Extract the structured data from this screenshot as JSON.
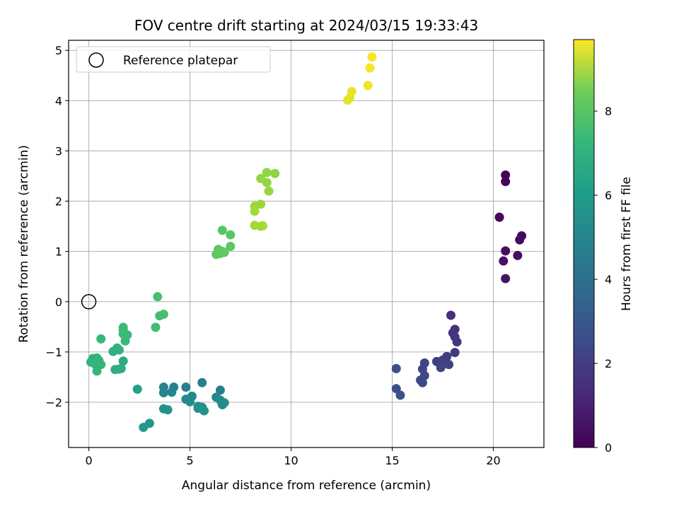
{
  "chart_data": {
    "type": "scatter",
    "title": "FOV centre drift starting at 2024/03/15 19:33:43",
    "xlabel": "Angular distance from reference (arcmin)",
    "ylabel": "Rotation from reference (arcmin)",
    "xlim": [
      -1.0,
      22.5
    ],
    "ylim": [
      -2.9,
      5.2
    ],
    "xticks": [
      0,
      5,
      10,
      15,
      20
    ],
    "yticks": [
      -2,
      -1,
      0,
      1,
      2,
      3,
      4,
      5
    ],
    "grid": true,
    "legend": {
      "placement": "top-left",
      "entries": [
        "Reference platepar"
      ]
    },
    "reference_point": {
      "x": 0,
      "y": 0,
      "label": "Reference platepar"
    },
    "colorbar": {
      "label": "Hours from first FF file",
      "range": [
        0,
        9.7
      ],
      "ticks": [
        0,
        2,
        4,
        6,
        8
      ],
      "colormap": "viridis"
    },
    "points": [
      {
        "x": 20.6,
        "y": 2.52,
        "c": 0.1
      },
      {
        "x": 20.6,
        "y": 2.39,
        "c": 0.15
      },
      {
        "x": 20.3,
        "y": 1.68,
        "c": 0.2
      },
      {
        "x": 21.4,
        "y": 1.31,
        "c": 0.25
      },
      {
        "x": 21.3,
        "y": 1.23,
        "c": 0.3
      },
      {
        "x": 20.6,
        "y": 1.01,
        "c": 0.35
      },
      {
        "x": 21.2,
        "y": 0.92,
        "c": 0.4
      },
      {
        "x": 20.5,
        "y": 0.81,
        "c": 0.45
      },
      {
        "x": 20.6,
        "y": 0.46,
        "c": 0.5
      },
      {
        "x": 17.9,
        "y": -0.27,
        "c": 1.3
      },
      {
        "x": 18.1,
        "y": -0.55,
        "c": 1.4
      },
      {
        "x": 18.0,
        "y": -0.62,
        "c": 1.45
      },
      {
        "x": 18.1,
        "y": -0.7,
        "c": 1.5
      },
      {
        "x": 18.2,
        "y": -0.8,
        "c": 1.55
      },
      {
        "x": 18.1,
        "y": -1.01,
        "c": 1.6
      },
      {
        "x": 17.7,
        "y": -1.09,
        "c": 1.7
      },
      {
        "x": 17.5,
        "y": -1.16,
        "c": 1.75
      },
      {
        "x": 17.2,
        "y": -1.19,
        "c": 1.8
      },
      {
        "x": 17.4,
        "y": -1.23,
        "c": 1.85
      },
      {
        "x": 17.8,
        "y": -1.25,
        "c": 1.9
      },
      {
        "x": 17.4,
        "y": -1.31,
        "c": 1.95
      },
      {
        "x": 16.6,
        "y": -1.22,
        "c": 2.0
      },
      {
        "x": 16.5,
        "y": -1.34,
        "c": 2.05
      },
      {
        "x": 16.6,
        "y": -1.47,
        "c": 2.1
      },
      {
        "x": 16.4,
        "y": -1.56,
        "c": 2.15
      },
      {
        "x": 16.5,
        "y": -1.61,
        "c": 2.2
      },
      {
        "x": 15.2,
        "y": -1.33,
        "c": 2.3
      },
      {
        "x": 15.2,
        "y": -1.73,
        "c": 2.35
      },
      {
        "x": 15.4,
        "y": -1.86,
        "c": 2.4
      },
      {
        "x": 5.6,
        "y": -1.61,
        "c": 4.1
      },
      {
        "x": 4.8,
        "y": -1.7,
        "c": 4.15
      },
      {
        "x": 6.5,
        "y": -1.76,
        "c": 4.2
      },
      {
        "x": 3.7,
        "y": -1.7,
        "c": 4.25
      },
      {
        "x": 4.2,
        "y": -1.7,
        "c": 4.3
      },
      {
        "x": 3.7,
        "y": -1.81,
        "c": 4.35
      },
      {
        "x": 4.1,
        "y": -1.8,
        "c": 4.4
      },
      {
        "x": 5.1,
        "y": -1.88,
        "c": 4.45
      },
      {
        "x": 6.3,
        "y": -1.9,
        "c": 4.5
      },
      {
        "x": 4.8,
        "y": -1.94,
        "c": 4.55
      },
      {
        "x": 6.5,
        "y": -1.96,
        "c": 4.6
      },
      {
        "x": 5.0,
        "y": -1.99,
        "c": 4.65
      },
      {
        "x": 6.7,
        "y": -2.01,
        "c": 4.7
      },
      {
        "x": 6.6,
        "y": -2.05,
        "c": 4.75
      },
      {
        "x": 5.4,
        "y": -2.08,
        "c": 4.8
      },
      {
        "x": 5.6,
        "y": -2.1,
        "c": 4.85
      },
      {
        "x": 5.4,
        "y": -2.12,
        "c": 4.9
      },
      {
        "x": 3.7,
        "y": -2.13,
        "c": 4.95
      },
      {
        "x": 3.9,
        "y": -2.15,
        "c": 5.0
      },
      {
        "x": 5.7,
        "y": -2.17,
        "c": 5.05
      },
      {
        "x": 3.0,
        "y": -2.42,
        "c": 5.2
      },
      {
        "x": 2.7,
        "y": -2.5,
        "c": 5.25
      },
      {
        "x": 2.4,
        "y": -1.74,
        "c": 5.5
      },
      {
        "x": 1.7,
        "y": -1.18,
        "c": 6.0
      },
      {
        "x": 1.5,
        "y": -1.34,
        "c": 6.05
      },
      {
        "x": 1.3,
        "y": -1.35,
        "c": 6.1
      },
      {
        "x": 1.6,
        "y": -1.33,
        "c": 6.1
      },
      {
        "x": 1.2,
        "y": -0.99,
        "c": 6.15
      },
      {
        "x": 1.4,
        "y": -0.92,
        "c": 6.2
      },
      {
        "x": 1.5,
        "y": -0.96,
        "c": 6.2
      },
      {
        "x": 0.2,
        "y": -1.13,
        "c": 6.25
      },
      {
        "x": 0.4,
        "y": -1.12,
        "c": 6.3
      },
      {
        "x": 0.1,
        "y": -1.2,
        "c": 6.3
      },
      {
        "x": 0.5,
        "y": -1.17,
        "c": 6.35
      },
      {
        "x": 0.3,
        "y": -1.24,
        "c": 6.35
      },
      {
        "x": 0.6,
        "y": -1.25,
        "c": 6.4
      },
      {
        "x": 0.4,
        "y": -1.38,
        "c": 6.4
      },
      {
        "x": 0.6,
        "y": -0.74,
        "c": 6.45
      },
      {
        "x": 1.8,
        "y": -0.78,
        "c": 6.5
      },
      {
        "x": 1.7,
        "y": -0.64,
        "c": 6.55
      },
      {
        "x": 1.9,
        "y": -0.66,
        "c": 6.55
      },
      {
        "x": 1.7,
        "y": -0.56,
        "c": 6.6
      },
      {
        "x": 1.7,
        "y": -0.51,
        "c": 6.6
      },
      {
        "x": 3.3,
        "y": -0.51,
        "c": 6.7
      },
      {
        "x": 3.5,
        "y": -0.28,
        "c": 6.75
      },
      {
        "x": 3.7,
        "y": -0.25,
        "c": 6.8
      },
      {
        "x": 3.4,
        "y": 0.1,
        "c": 6.85
      },
      {
        "x": 6.6,
        "y": 1.42,
        "c": 7.1
      },
      {
        "x": 7.0,
        "y": 1.33,
        "c": 7.15
      },
      {
        "x": 7.0,
        "y": 1.1,
        "c": 7.2
      },
      {
        "x": 6.4,
        "y": 1.04,
        "c": 7.2
      },
      {
        "x": 6.6,
        "y": 1.0,
        "c": 7.25
      },
      {
        "x": 6.3,
        "y": 0.94,
        "c": 7.25
      },
      {
        "x": 6.5,
        "y": 0.96,
        "c": 7.3
      },
      {
        "x": 6.7,
        "y": 0.98,
        "c": 7.3
      },
      {
        "x": 9.2,
        "y": 2.55,
        "c": 8.0
      },
      {
        "x": 8.8,
        "y": 2.57,
        "c": 8.05
      },
      {
        "x": 8.5,
        "y": 2.45,
        "c": 8.1
      },
      {
        "x": 8.8,
        "y": 2.37,
        "c": 8.1
      },
      {
        "x": 8.9,
        "y": 2.2,
        "c": 8.15
      },
      {
        "x": 8.5,
        "y": 1.94,
        "c": 8.2
      },
      {
        "x": 8.2,
        "y": 1.9,
        "c": 8.25
      },
      {
        "x": 8.2,
        "y": 1.8,
        "c": 8.3
      },
      {
        "x": 8.2,
        "y": 1.52,
        "c": 8.3
      },
      {
        "x": 8.5,
        "y": 1.5,
        "c": 8.35
      },
      {
        "x": 8.6,
        "y": 1.51,
        "c": 8.35
      },
      {
        "x": 14.0,
        "y": 4.87,
        "c": 9.6
      },
      {
        "x": 13.9,
        "y": 4.65,
        "c": 9.55
      },
      {
        "x": 13.8,
        "y": 4.3,
        "c": 9.5
      },
      {
        "x": 13.0,
        "y": 4.18,
        "c": 9.4
      },
      {
        "x": 12.9,
        "y": 4.05,
        "c": 9.35
      },
      {
        "x": 12.8,
        "y": 4.01,
        "c": 9.3
      }
    ]
  }
}
